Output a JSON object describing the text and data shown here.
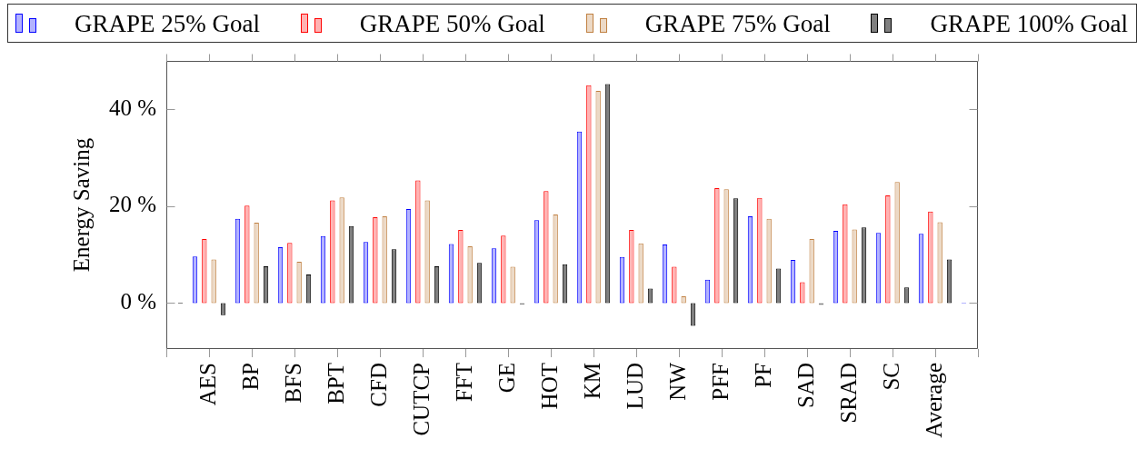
{
  "chart_data": {
    "type": "bar",
    "ylabel": "Energy Saving",
    "categories": [
      null,
      "AES",
      "BP",
      "BFS",
      "BPT",
      "CFD",
      "CUTCP",
      "FFT",
      "GE",
      "HOT",
      "KM",
      "LUD",
      "NW",
      "PFF",
      "PF",
      "SAD",
      "SRAD",
      "SC",
      "Average",
      null
    ],
    "series": [
      {
        "name": "GRAPE 25% Goal",
        "color": "#b3b3ff",
        "values": [
          null,
          9.6,
          17.4,
          11.5,
          13.8,
          12.6,
          19.4,
          12.2,
          11.3,
          17.1,
          35.4,
          9.5,
          12.1,
          4.8,
          17.9,
          8.9,
          14.9,
          14.5,
          14.3,
          0
        ]
      },
      {
        "name": "GRAPE 50% Goal",
        "color": "#ffb3b3",
        "values": [
          null,
          13.2,
          20.1,
          12.4,
          21.2,
          17.7,
          25.3,
          15.1,
          13.9,
          23.1,
          45.0,
          15.1,
          7.5,
          23.7,
          21.7,
          4.3,
          20.4,
          22.2,
          18.9,
          0
        ]
      },
      {
        "name": "GRAPE 75% Goal",
        "color": "#ecd9c6",
        "values": [
          0,
          9.0,
          16.6,
          8.5,
          21.8,
          17.9,
          21.2,
          11.7,
          7.5,
          18.3,
          43.8,
          12.3,
          1.4,
          23.5,
          17.4,
          13.2,
          15.2,
          25.0,
          16.7,
          null
        ]
      },
      {
        "name": "GRAPE 100% Goal",
        "color": "#808080",
        "values": [
          0,
          -2.5,
          7.6,
          5.9,
          15.9,
          11.1,
          7.6,
          8.3,
          -0.3,
          8.0,
          45.2,
          3.0,
          -4.7,
          21.6,
          7.1,
          -0.4,
          15.6,
          3.2,
          9.0,
          null
        ]
      }
    ],
    "ylim": [
      -9.5,
      50
    ],
    "yticks": [
      {
        "value": 0,
        "label": "0 %"
      },
      {
        "value": 20,
        "label": "20 %"
      },
      {
        "value": 40,
        "label": "40 %"
      }
    ],
    "grid": false,
    "legend": "top"
  }
}
